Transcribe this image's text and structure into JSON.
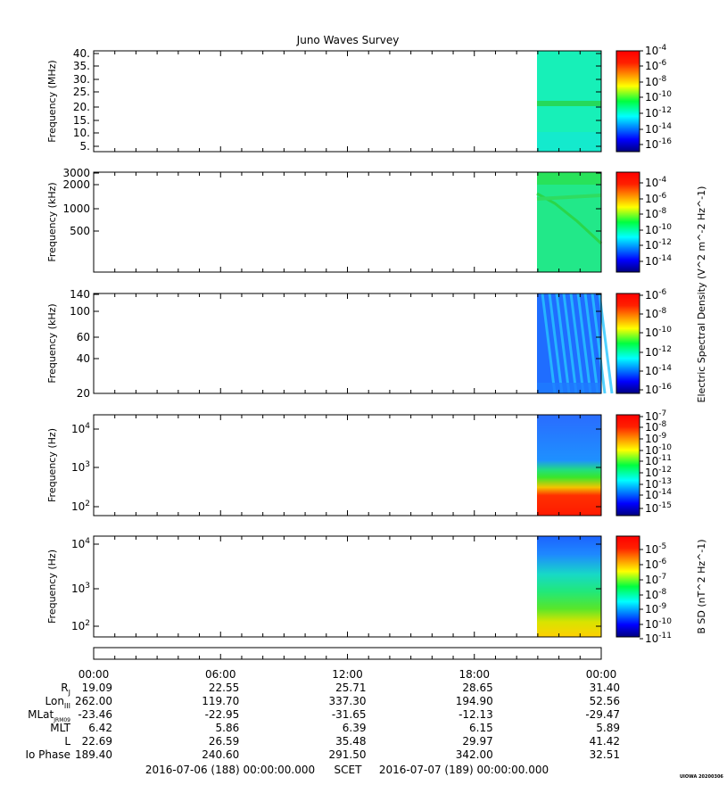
{
  "title": "Juno Waves Survey",
  "watermark": "UIOWA 20200306",
  "chart_data": [
    {
      "type": "heatmap",
      "ylabel": "Frequency (MHz)",
      "y_ticks": [
        "40.",
        "35.",
        "30.",
        "25.",
        "20.",
        "15.",
        "10.",
        "5."
      ],
      "ylim": [
        3.5,
        41
      ],
      "colorbar_ticks": [
        "10^-4",
        "10^-6",
        "10^-8",
        "10^-10",
        "10^-12",
        "10^-14",
        "10^-16"
      ],
      "data_start": "2016-07-06 20:16",
      "data_end": "2016-07-07 00:00",
      "feature": "uniform background ~10^-12 with a narrow band near 21 MHz"
    },
    {
      "type": "heatmap",
      "ylabel": "Frequency (kHz)",
      "y_ticks": [
        "3000",
        "2000",
        "1000",
        "500"
      ],
      "scale": "log",
      "colorbar_ticks": [
        "10^-4",
        "10^-6",
        "10^-8",
        "10^-10",
        "10^-12",
        "10^-14"
      ],
      "colorbar_label": "Electric Spectral Density (V^2 m^-2 Hz^-1)",
      "data_start": "2016-07-06 20:16",
      "data_end": "2016-07-07 00:00"
    },
    {
      "type": "heatmap",
      "ylabel": "Frequency (kHz)",
      "y_ticks": [
        "140",
        "100",
        "60",
        "40",
        "20"
      ],
      "scale": "log",
      "colorbar_ticks": [
        "10^-6",
        "10^-8",
        "10^-10",
        "10^-12",
        "10^-14",
        "10^-16"
      ],
      "data_start": "2016-07-06 20:16",
      "data_end": "2016-07-07 00:00"
    },
    {
      "type": "heatmap",
      "ylabel": "Frequency (Hz)",
      "y_ticks": [
        "10^4",
        "10^3",
        "10^2"
      ],
      "scale": "log",
      "colorbar_ticks": [
        "10^-7",
        "10^-8",
        "10^-9",
        "10^-10",
        "10^-11",
        "10^-12",
        "10^-13",
        "10^-14",
        "10^-15"
      ],
      "data_start": "2016-07-06 20:16",
      "data_end": "2016-07-07 00:00"
    },
    {
      "type": "heatmap",
      "ylabel": "Frequency (Hz)",
      "y_ticks": [
        "10^4",
        "10^3",
        "10^2"
      ],
      "scale": "log",
      "colorbar_ticks": [
        "10^-5",
        "10^-6",
        "10^-7",
        "10^-8",
        "10^-9",
        "10^-10",
        "10^-11"
      ],
      "colorbar_label": "B SD (nT^2 Hz^-1)",
      "data_start": "2016-07-06 20:16",
      "data_end": "2016-07-07 00:00"
    }
  ],
  "time_axis": {
    "tick_labels": [
      "00:00",
      "06:00",
      "12:00",
      "18:00",
      "00:00"
    ],
    "start_label": "2016-07-06 (188) 00:00:00.000",
    "scet_label": "SCET",
    "end_label": "2016-07-07 (189) 00:00:00.000"
  },
  "ephemeris": {
    "labels": [
      "R_J",
      "Lon_III",
      "MLat_JRM09",
      "MLT",
      "L",
      "Io Phase"
    ],
    "rows": [
      [
        "19.09",
        "22.55",
        "25.71",
        "28.65",
        "31.40"
      ],
      [
        "262.00",
        "119.70",
        "337.30",
        "194.90",
        "52.56"
      ],
      [
        "-23.46",
        "-22.95",
        "-31.65",
        "-12.13",
        "-29.47"
      ],
      [
        "6.42",
        "5.86",
        "6.39",
        "6.15",
        "5.89"
      ],
      [
        "22.69",
        "26.59",
        "35.48",
        "29.97",
        "41.42"
      ],
      [
        "189.40",
        "240.60",
        "291.50",
        "342.00",
        "32.51"
      ]
    ]
  }
}
